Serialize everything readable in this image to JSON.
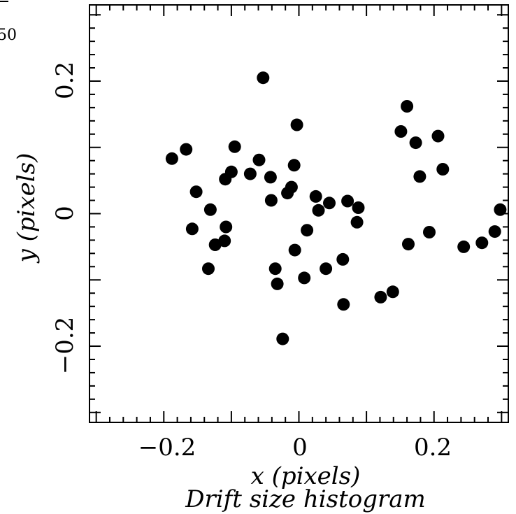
{
  "chart_data": {
    "type": "scatter",
    "title": "",
    "xlabel": "x (pixels)",
    "ylabel": "y (pixels)",
    "caption": "Drift size histogram",
    "corner_fragment": "50",
    "xlim": [
      -0.31,
      0.31
    ],
    "ylim": [
      -0.315,
      0.315
    ],
    "xticks": [
      -0.2,
      0,
      0.2
    ],
    "yticks": [
      -0.2,
      0,
      0.2
    ],
    "xtick_labels": [
      "−0.2",
      "0",
      "0.2"
    ],
    "ytick_labels": [
      "−0.2",
      "0",
      "0.2"
    ],
    "marker_color": "#000000",
    "grid": false,
    "points": [
      {
        "x": -0.053,
        "y": 0.205
      },
      {
        "x": 0.16,
        "y": 0.162
      },
      {
        "x": -0.003,
        "y": 0.134
      },
      {
        "x": 0.151,
        "y": 0.124
      },
      {
        "x": 0.206,
        "y": 0.117
      },
      {
        "x": 0.173,
        "y": 0.107
      },
      {
        "x": -0.095,
        "y": 0.101
      },
      {
        "x": -0.167,
        "y": 0.097
      },
      {
        "x": -0.188,
        "y": 0.083
      },
      {
        "x": -0.059,
        "y": 0.081
      },
      {
        "x": -0.007,
        "y": 0.073
      },
      {
        "x": 0.213,
        "y": 0.067
      },
      {
        "x": -0.1,
        "y": 0.063
      },
      {
        "x": -0.072,
        "y": 0.06
      },
      {
        "x": 0.179,
        "y": 0.056
      },
      {
        "x": -0.042,
        "y": 0.055
      },
      {
        "x": -0.109,
        "y": 0.052
      },
      {
        "x": -0.011,
        "y": 0.04
      },
      {
        "x": -0.152,
        "y": 0.033
      },
      {
        "x": -0.017,
        "y": 0.031
      },
      {
        "x": 0.025,
        "y": 0.026
      },
      {
        "x": -0.041,
        "y": 0.02
      },
      {
        "x": 0.072,
        "y": 0.019
      },
      {
        "x": 0.045,
        "y": 0.016
      },
      {
        "x": 0.088,
        "y": 0.009
      },
      {
        "x": -0.131,
        "y": 0.006
      },
      {
        "x": 0.298,
        "y": 0.006
      },
      {
        "x": 0.029,
        "y": 0.005
      },
      {
        "x": 0.086,
        "y": -0.013
      },
      {
        "x": -0.108,
        "y": -0.02
      },
      {
        "x": -0.158,
        "y": -0.023
      },
      {
        "x": 0.012,
        "y": -0.025
      },
      {
        "x": 0.29,
        "y": -0.027
      },
      {
        "x": 0.193,
        "y": -0.028
      },
      {
        "x": -0.11,
        "y": -0.041
      },
      {
        "x": -0.124,
        "y": -0.047
      },
      {
        "x": 0.162,
        "y": -0.046
      },
      {
        "x": 0.271,
        "y": -0.044
      },
      {
        "x": 0.244,
        "y": -0.05
      },
      {
        "x": -0.006,
        "y": -0.055
      },
      {
        "x": 0.065,
        "y": -0.069
      },
      {
        "x": -0.134,
        "y": -0.083
      },
      {
        "x": -0.035,
        "y": -0.083
      },
      {
        "x": 0.04,
        "y": -0.083
      },
      {
        "x": 0.008,
        "y": -0.097
      },
      {
        "x": -0.032,
        "y": -0.106
      },
      {
        "x": 0.139,
        "y": -0.118
      },
      {
        "x": 0.121,
        "y": -0.126
      },
      {
        "x": 0.066,
        "y": -0.137
      },
      {
        "x": -0.024,
        "y": -0.189
      }
    ]
  }
}
